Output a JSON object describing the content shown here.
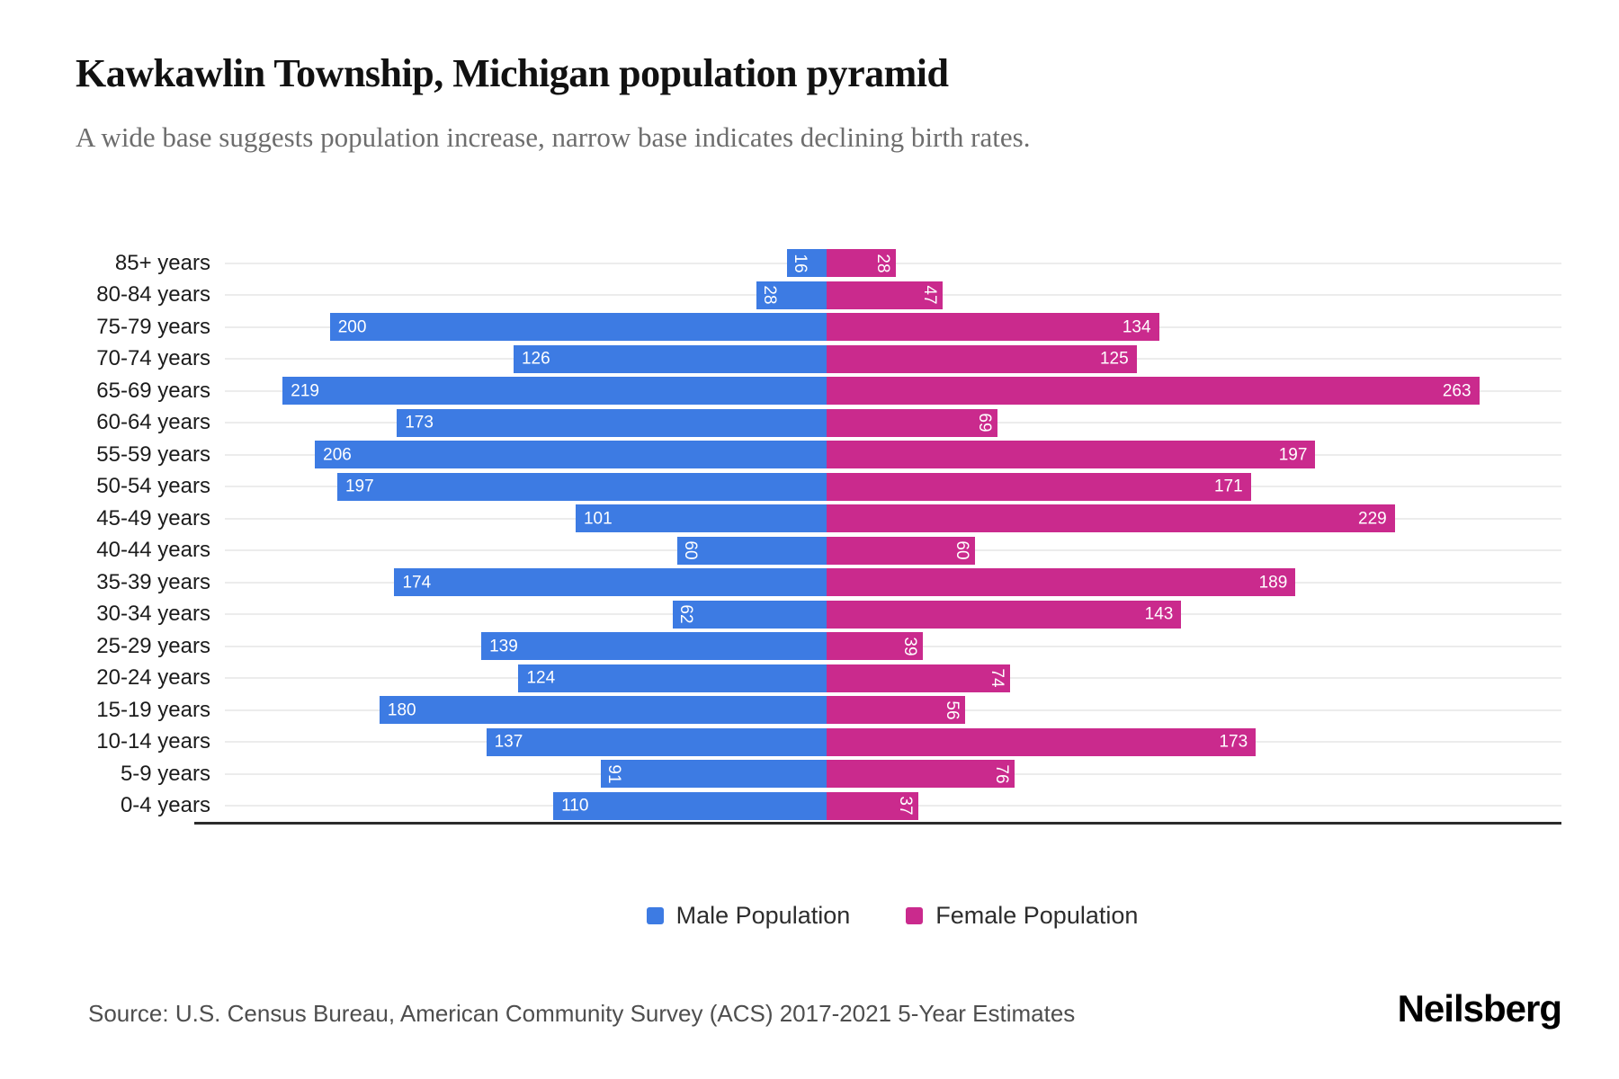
{
  "header": {
    "title": "Kawkawlin Township, Michigan population pyramid",
    "subtitle": "A wide base suggests population increase, narrow base indicates declining birth rates."
  },
  "legend": {
    "male": "Male Population",
    "female": "Female Population"
  },
  "footer": {
    "source": "Source: U.S. Census Bureau, American Community Survey (ACS) 2017-2021 5-Year Estimates",
    "brand": "Neilsberg"
  },
  "colors": {
    "male": "#3D7BE3",
    "female": "#CA2A8D",
    "grid": "#ececec",
    "axis": "#2b2b2b"
  },
  "chart_data": {
    "type": "bar",
    "variant": "population-pyramid",
    "orientation": "horizontal",
    "title": "Kawkawlin Township, Michigan population pyramid",
    "categories": [
      "85+ years",
      "80-84 years",
      "75-79 years",
      "70-74 years",
      "65-69 years",
      "60-64 years",
      "55-59 years",
      "50-54 years",
      "45-49 years",
      "40-44 years",
      "35-39 years",
      "30-34 years",
      "25-29 years",
      "20-24 years",
      "15-19 years",
      "10-14 years",
      "5-9 years",
      "0-4 years"
    ],
    "series": [
      {
        "name": "Male Population",
        "side": "left",
        "color": "#3D7BE3",
        "values": [
          16,
          28,
          200,
          126,
          219,
          173,
          206,
          197,
          101,
          60,
          174,
          62,
          139,
          124,
          180,
          137,
          91,
          110
        ]
      },
      {
        "name": "Female Population",
        "side": "right",
        "color": "#CA2A8D",
        "values": [
          28,
          47,
          134,
          125,
          263,
          69,
          197,
          171,
          229,
          60,
          189,
          143,
          39,
          74,
          56,
          173,
          76,
          37
        ]
      }
    ],
    "value_axis_max": 263,
    "grid": true,
    "legend_position": "bottom",
    "data_labels": "inside bar end; rotated 90deg when value < 100"
  }
}
